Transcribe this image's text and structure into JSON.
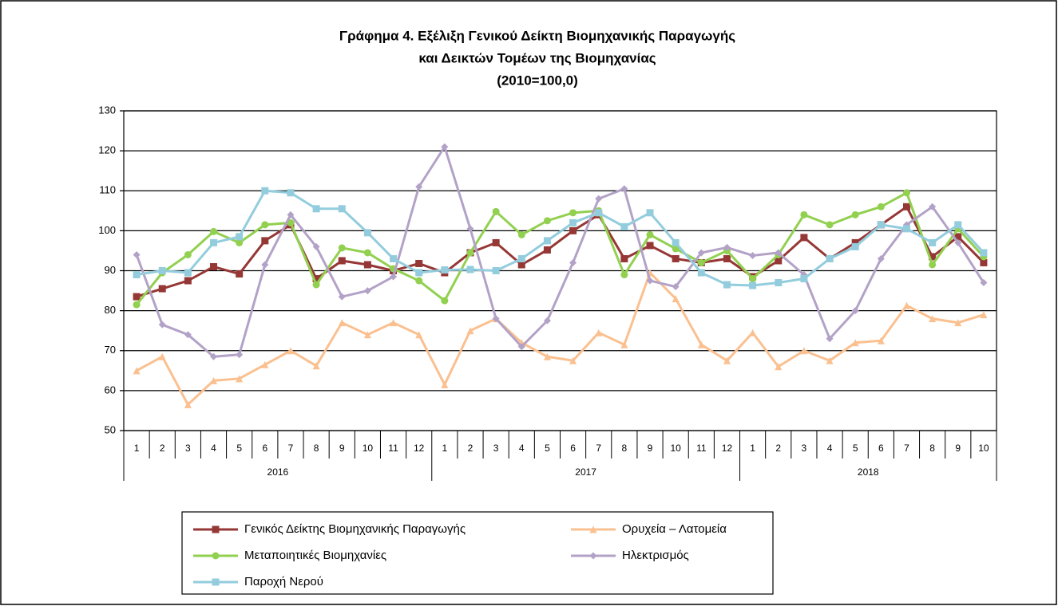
{
  "chart_data": {
    "type": "line",
    "title": [
      "Γράφημα 4. Εξέλιξη Γενικού  Δείκτη Βιομηχανικής  Παραγωγής",
      "και Δεικτών Τομέων της Βιομηχανίας",
      "(2010=100,0)"
    ],
    "groups": [
      {
        "label": "2016",
        "categories": [
          "1",
          "2",
          "3",
          "4",
          "5",
          "6",
          "7",
          "8",
          "9",
          "10",
          "11",
          "12"
        ]
      },
      {
        "label": "2017",
        "categories": [
          "1",
          "2",
          "3",
          "4",
          "5",
          "6",
          "7",
          "8",
          "9",
          "10",
          "11",
          "12"
        ]
      },
      {
        "label": "2018",
        "categories": [
          "1",
          "2",
          "3",
          "4",
          "5",
          "6",
          "7",
          "8",
          "9",
          "10"
        ]
      }
    ],
    "ylim": [
      50,
      130
    ],
    "yticks": [
      50,
      60,
      70,
      80,
      90,
      100,
      110,
      120,
      130
    ],
    "grid": true,
    "series": [
      {
        "name": "Γενικός Δείκτης Βιομηχανικής Παραγωγής",
        "color": "#953735",
        "marker": "square",
        "values": [
          83.5,
          85.5,
          87.5,
          91,
          89.2,
          97.5,
          101.5,
          88,
          92.5,
          91.5,
          90,
          91.8,
          89.5,
          94.5,
          97,
          91.5,
          95.2,
          100,
          104,
          93,
          96.3,
          93,
          92,
          93,
          88.5,
          92.5,
          98.3,
          93,
          97,
          101.5,
          106,
          93.5,
          98.5,
          92
        ]
      },
      {
        "name": "Ορυχεία – Λατομεία",
        "color": "#fac090",
        "marker": "triangle",
        "values": [
          65,
          68.5,
          56.5,
          62.5,
          63,
          66.5,
          70,
          66.2,
          77,
          74,
          77,
          74,
          61.5,
          75,
          78,
          72,
          68.5,
          67.5,
          74.5,
          71.5,
          89.5,
          83,
          71.5,
          67.5,
          74.5,
          66,
          70,
          67.5,
          72,
          72.5,
          81.3,
          78,
          77,
          79
        ]
      },
      {
        "name": "Μεταποιητικές Βιομηχανίες",
        "color": "#92d050",
        "marker": "circle",
        "values": [
          81.5,
          89.5,
          94,
          99.8,
          97,
          101.5,
          102,
          86.5,
          95.7,
          94.5,
          90.5,
          87.5,
          82.5,
          94.5,
          104.8,
          99,
          102.5,
          104.5,
          105,
          89,
          99,
          95.5,
          92,
          95,
          88,
          94,
          104,
          101.5,
          104,
          106,
          109.5,
          91.5,
          100.5,
          93.5
        ]
      },
      {
        "name": "Ηλεκτρισμός",
        "color": "#b3a2c7",
        "marker": "diamond",
        "values": [
          94,
          76.5,
          74,
          68.5,
          69,
          91.5,
          104,
          96,
          83.5,
          85,
          88.5,
          111,
          121,
          100.5,
          78,
          71,
          77.5,
          92,
          108,
          110.5,
          87.5,
          86,
          94.5,
          95.8,
          93.8,
          94.5,
          89,
          73,
          80,
          93,
          101.5,
          106,
          97,
          87
        ]
      },
      {
        "name": "Παροχή Νερού",
        "color": "#93cddd",
        "marker": "square",
        "values": [
          89,
          90,
          89.5,
          97,
          98.5,
          110,
          109.5,
          105.5,
          105.5,
          99.5,
          93,
          89.5,
          90.2,
          90.3,
          90,
          93,
          97.5,
          102,
          104.5,
          101,
          104.5,
          97,
          89.5,
          86.5,
          86.3,
          87,
          88,
          93,
          96,
          101.5,
          100.5,
          97,
          101.5,
          94.5
        ]
      }
    ]
  }
}
